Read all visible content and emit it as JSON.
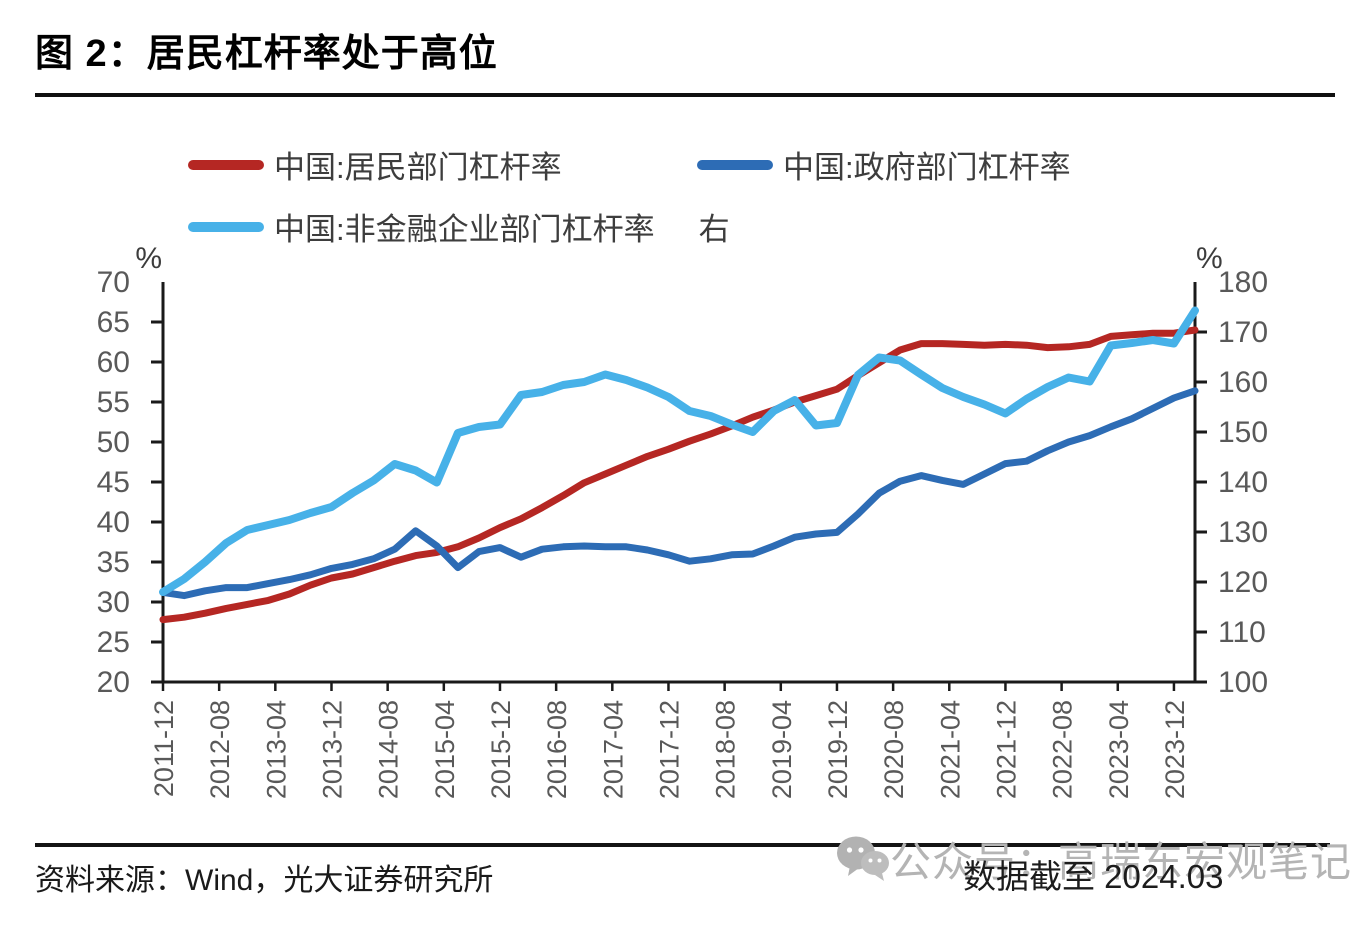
{
  "page": {
    "title": "图 2：居民杠杆率处于高位"
  },
  "legend": {
    "items": [
      {
        "label": "中国:居民部门杠杆率",
        "color": "#b52723"
      },
      {
        "label": "中国:政府部门杠杆率",
        "color": "#2d6cb5"
      },
      {
        "label": "中国:非金融企业部门杠杆率",
        "color": "#47b1e8",
        "axis_note": "右"
      }
    ]
  },
  "footer": {
    "source": "资料来源：Wind，光大证券研究所",
    "note": "数据截至 2024.03",
    "watermark": "公众号：高瑞东宏观笔记",
    "watermark_icon": "wechat-icon"
  },
  "chart_data": {
    "type": "line",
    "title": "居民杠杆率处于高位",
    "x_start": "2011-12",
    "x_end": "2024-03",
    "point_interval_months": 3,
    "x_tick_interval_months": 8,
    "x_tick_labels": [
      "2011-12",
      "2012-08",
      "2013-04",
      "2013-12",
      "2014-08",
      "2015-04",
      "2015-12",
      "2016-08",
      "2017-04",
      "2017-12",
      "2018-08",
      "2019-04",
      "2019-12",
      "2020-08",
      "2021-04",
      "2021-12",
      "2022-08",
      "2023-04",
      "2023-12"
    ],
    "left_axis": {
      "label": "%",
      "min": 20,
      "max": 70,
      "tick_step": 5,
      "ticks": [
        20,
        25,
        30,
        35,
        40,
        45,
        50,
        55,
        60,
        65,
        70
      ]
    },
    "right_axis": {
      "label": "%",
      "min": 100,
      "max": 180,
      "tick_step": 10,
      "ticks": [
        100,
        110,
        120,
        130,
        140,
        150,
        160,
        170,
        180
      ]
    },
    "grid": false,
    "legend_position": "top",
    "series": [
      {
        "name": "中国:居民部门杠杆率",
        "axis": "left",
        "color": "#b52723",
        "stroke_width": 7,
        "values": [
          27.8,
          28.1,
          28.6,
          29.2,
          29.7,
          30.2,
          31.0,
          32.1,
          33.0,
          33.5,
          34.3,
          35.1,
          35.8,
          36.2,
          36.9,
          38.0,
          39.3,
          40.4,
          41.8,
          43.3,
          44.9,
          46.0,
          47.1,
          48.2,
          49.1,
          50.1,
          51.0,
          52.0,
          53.1,
          54.0,
          55.0,
          55.8,
          56.6,
          58.3,
          59.9,
          61.5,
          62.3,
          62.3,
          62.2,
          62.1,
          62.2,
          62.1,
          61.8,
          61.9,
          62.2,
          63.2,
          63.4,
          63.6,
          63.6,
          64.0
        ]
      },
      {
        "name": "中国:政府部门杠杆率",
        "axis": "left",
        "color": "#2d6cb5",
        "stroke_width": 7,
        "values": [
          31.2,
          30.8,
          31.4,
          31.8,
          31.8,
          32.3,
          32.8,
          33.4,
          34.2,
          34.7,
          35.4,
          36.6,
          38.9,
          37.0,
          34.3,
          36.3,
          36.8,
          35.6,
          36.6,
          36.9,
          37.0,
          36.9,
          36.9,
          36.5,
          35.9,
          35.1,
          35.4,
          35.9,
          36.0,
          37.0,
          38.1,
          38.5,
          38.7,
          41.0,
          43.6,
          45.1,
          45.8,
          45.2,
          44.7,
          46.0,
          47.3,
          47.6,
          48.9,
          50.0,
          50.8,
          51.9,
          52.9,
          54.2,
          55.5,
          56.4
        ]
      },
      {
        "name": "中国:非金融企业部门杠杆率",
        "axis": "right",
        "color": "#47b1e8",
        "stroke_width": 8,
        "values": [
          118.0,
          120.6,
          124.0,
          127.8,
          130.4,
          131.4,
          132.4,
          133.8,
          135.0,
          137.8,
          140.3,
          143.6,
          142.3,
          139.9,
          149.8,
          151.0,
          151.5,
          157.4,
          158.0,
          159.4,
          160.0,
          161.5,
          160.4,
          158.9,
          157.0,
          154.2,
          153.2,
          151.5,
          150.0,
          154.2,
          156.4,
          151.3,
          151.8,
          161.4,
          164.9,
          164.3,
          161.5,
          158.8,
          157.0,
          155.5,
          153.7,
          156.6,
          159.0,
          160.9,
          160.1,
          167.3,
          167.8,
          168.4,
          167.7,
          174.3
        ]
      }
    ]
  }
}
